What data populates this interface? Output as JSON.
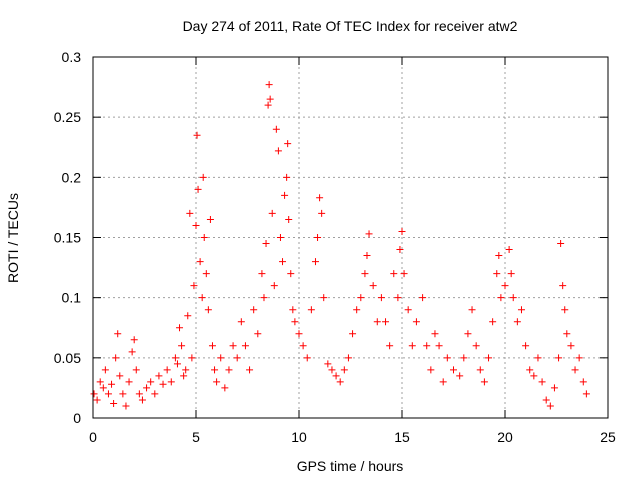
{
  "chart_data": {
    "type": "scatter",
    "title": "Day 274 of 2011, Rate Of TEC Index for receiver atw2",
    "xlabel": "GPS time / hours",
    "ylabel": "ROTI / TECUs",
    "xlim": [
      0,
      25
    ],
    "ylim": [
      0,
      0.3
    ],
    "x_ticks": [
      "0",
      "5",
      "10",
      "15",
      "20",
      "25"
    ],
    "y_ticks": [
      "0",
      "0.05",
      "0.1",
      "0.15",
      "0.2",
      "0.25",
      "0.3"
    ],
    "grid": true,
    "marker": "+",
    "color": "#ff0000",
    "series": [
      {
        "points": [
          [
            0.05,
            0.02
          ],
          [
            0.2,
            0.015
          ],
          [
            0.35,
            0.03
          ],
          [
            0.5,
            0.025
          ],
          [
            0.6,
            0.04
          ],
          [
            0.75,
            0.02
          ],
          [
            0.9,
            0.028
          ],
          [
            1.0,
            0.012
          ],
          [
            1.1,
            0.05
          ],
          [
            1.2,
            0.07
          ],
          [
            1.3,
            0.035
          ],
          [
            1.45,
            0.02
          ],
          [
            1.6,
            0.01
          ],
          [
            1.75,
            0.03
          ],
          [
            1.9,
            0.055
          ],
          [
            2.0,
            0.065
          ],
          [
            2.1,
            0.04
          ],
          [
            2.25,
            0.02
          ],
          [
            2.4,
            0.015
          ],
          [
            2.6,
            0.025
          ],
          [
            2.8,
            0.03
          ],
          [
            3.0,
            0.02
          ],
          [
            3.2,
            0.035
          ],
          [
            3.4,
            0.028
          ],
          [
            3.6,
            0.04
          ],
          [
            3.8,
            0.03
          ],
          [
            4.0,
            0.05
          ],
          [
            4.1,
            0.045
          ],
          [
            4.2,
            0.075
          ],
          [
            4.3,
            0.06
          ],
          [
            4.4,
            0.035
          ],
          [
            4.5,
            0.04
          ],
          [
            4.6,
            0.085
          ],
          [
            4.7,
            0.17
          ],
          [
            4.8,
            0.05
          ],
          [
            4.9,
            0.11
          ],
          [
            5.0,
            0.16
          ],
          [
            5.05,
            0.235
          ],
          [
            5.1,
            0.19
          ],
          [
            5.2,
            0.13
          ],
          [
            5.3,
            0.1
          ],
          [
            5.35,
            0.2
          ],
          [
            5.4,
            0.15
          ],
          [
            5.5,
            0.12
          ],
          [
            5.6,
            0.09
          ],
          [
            5.7,
            0.165
          ],
          [
            5.8,
            0.06
          ],
          [
            5.9,
            0.04
          ],
          [
            6.0,
            0.03
          ],
          [
            6.2,
            0.05
          ],
          [
            6.4,
            0.025
          ],
          [
            6.6,
            0.04
          ],
          [
            6.8,
            0.06
          ],
          [
            7.0,
            0.05
          ],
          [
            7.2,
            0.08
          ],
          [
            7.4,
            0.06
          ],
          [
            7.6,
            0.04
          ],
          [
            7.8,
            0.09
          ],
          [
            8.0,
            0.07
          ],
          [
            8.2,
            0.12
          ],
          [
            8.3,
            0.1
          ],
          [
            8.4,
            0.145
          ],
          [
            8.5,
            0.26
          ],
          [
            8.55,
            0.277
          ],
          [
            8.6,
            0.265
          ],
          [
            8.7,
            0.17
          ],
          [
            8.8,
            0.11
          ],
          [
            8.9,
            0.24
          ],
          [
            9.0,
            0.222
          ],
          [
            9.1,
            0.15
          ],
          [
            9.2,
            0.13
          ],
          [
            9.3,
            0.185
          ],
          [
            9.4,
            0.2
          ],
          [
            9.45,
            0.228
          ],
          [
            9.5,
            0.165
          ],
          [
            9.6,
            0.12
          ],
          [
            9.7,
            0.09
          ],
          [
            9.8,
            0.08
          ],
          [
            10.0,
            0.07
          ],
          [
            10.2,
            0.06
          ],
          [
            10.4,
            0.05
          ],
          [
            10.6,
            0.09
          ],
          [
            10.8,
            0.13
          ],
          [
            10.9,
            0.15
          ],
          [
            11.0,
            0.183
          ],
          [
            11.1,
            0.17
          ],
          [
            11.2,
            0.1
          ],
          [
            11.4,
            0.045
          ],
          [
            11.6,
            0.04
          ],
          [
            11.8,
            0.035
          ],
          [
            12.0,
            0.03
          ],
          [
            12.2,
            0.04
          ],
          [
            12.4,
            0.05
          ],
          [
            12.6,
            0.07
          ],
          [
            12.8,
            0.09
          ],
          [
            13.0,
            0.1
          ],
          [
            13.2,
            0.12
          ],
          [
            13.3,
            0.135
          ],
          [
            13.4,
            0.153
          ],
          [
            13.6,
            0.11
          ],
          [
            13.8,
            0.08
          ],
          [
            14.0,
            0.1
          ],
          [
            14.2,
            0.08
          ],
          [
            14.4,
            0.06
          ],
          [
            14.6,
            0.12
          ],
          [
            14.8,
            0.1
          ],
          [
            14.9,
            0.14
          ],
          [
            15.0,
            0.155
          ],
          [
            15.1,
            0.12
          ],
          [
            15.3,
            0.09
          ],
          [
            15.5,
            0.06
          ],
          [
            15.7,
            0.08
          ],
          [
            16.0,
            0.1
          ],
          [
            16.2,
            0.06
          ],
          [
            16.4,
            0.04
          ],
          [
            16.6,
            0.07
          ],
          [
            16.8,
            0.06
          ],
          [
            17.0,
            0.03
          ],
          [
            17.2,
            0.05
          ],
          [
            17.5,
            0.04
          ],
          [
            17.8,
            0.035
          ],
          [
            18.0,
            0.05
          ],
          [
            18.2,
            0.07
          ],
          [
            18.4,
            0.09
          ],
          [
            18.6,
            0.06
          ],
          [
            18.8,
            0.04
          ],
          [
            19.0,
            0.03
          ],
          [
            19.2,
            0.05
          ],
          [
            19.4,
            0.08
          ],
          [
            19.6,
            0.12
          ],
          [
            19.7,
            0.135
          ],
          [
            19.8,
            0.1
          ],
          [
            20.0,
            0.11
          ],
          [
            20.2,
            0.14
          ],
          [
            20.3,
            0.12
          ],
          [
            20.4,
            0.1
          ],
          [
            20.6,
            0.08
          ],
          [
            20.8,
            0.09
          ],
          [
            21.0,
            0.06
          ],
          [
            21.2,
            0.04
          ],
          [
            21.4,
            0.035
          ],
          [
            21.6,
            0.05
          ],
          [
            21.8,
            0.03
          ],
          [
            22.0,
            0.015
          ],
          [
            22.2,
            0.01
          ],
          [
            22.4,
            0.025
          ],
          [
            22.6,
            0.05
          ],
          [
            22.7,
            0.145
          ],
          [
            22.8,
            0.11
          ],
          [
            22.9,
            0.09
          ],
          [
            23.0,
            0.07
          ],
          [
            23.2,
            0.06
          ],
          [
            23.4,
            0.04
          ],
          [
            23.6,
            0.05
          ],
          [
            23.8,
            0.03
          ],
          [
            23.95,
            0.02
          ]
        ]
      }
    ]
  }
}
